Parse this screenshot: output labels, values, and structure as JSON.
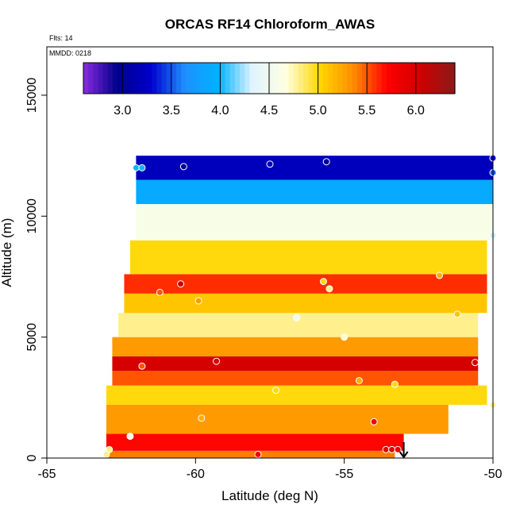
{
  "chart_data": {
    "type": "heatmap",
    "title": "ORCAS RF14 Chloroform_AWAS",
    "subtitle_flights": "Flts: 14",
    "subtitle_date": "MMDD: 0218",
    "xlabel": "Latitude (deg N)",
    "ylabel": "Altitude (m)",
    "xlim": [
      -65,
      -50
    ],
    "ylim": [
      0,
      17000
    ],
    "x_ticks": [
      "-65",
      "-60",
      "-55",
      "-50"
    ],
    "x_tick_values": [
      -65,
      -60,
      -55,
      -50
    ],
    "y_ticks": [
      "0",
      "5000",
      "10000",
      "15000"
    ],
    "y_tick_values": [
      0,
      5000,
      10000,
      15000
    ],
    "colorbar": {
      "range": [
        2.6,
        6.4
      ],
      "ticks": [
        "3.0",
        "3.5",
        "4.0",
        "4.5",
        "5.0",
        "5.5",
        "6.0"
      ],
      "tick_values": [
        3.0,
        3.5,
        4.0,
        4.5,
        5.0,
        5.5,
        6.0
      ],
      "colors": [
        "#8a2be2",
        "#00008b",
        "#0000cd",
        "#1e90ff",
        "#00b2ff",
        "#e0f4ff",
        "#ffffe0",
        "#ffd700",
        "#ff8c00",
        "#ff0000",
        "#cd0000",
        "#8b1a1a"
      ]
    },
    "layers": [
      {
        "alt_bottom": 0,
        "alt_top": 300,
        "lat_start": -63.0,
        "lat_end": -53.3,
        "value": 5.4
      },
      {
        "alt_bottom": 300,
        "alt_top": 1000,
        "lat_start": -63.0,
        "lat_end": -53.0,
        "value": 5.7
      },
      {
        "alt_bottom": 1000,
        "alt_top": 2200,
        "lat_start": -63.0,
        "lat_end": -51.5,
        "value": 5.3
      },
      {
        "alt_bottom": 2200,
        "alt_top": 3000,
        "lat_start": -63.0,
        "lat_end": -50.2,
        "value": 5.0
      },
      {
        "alt_bottom": 3000,
        "alt_top": 3600,
        "lat_start": -62.8,
        "lat_end": -50.5,
        "value": 5.5
      },
      {
        "alt_bottom": 3600,
        "alt_top": 4200,
        "lat_start": -62.8,
        "lat_end": -50.5,
        "value": 6.0
      },
      {
        "alt_bottom": 4200,
        "alt_top": 5000,
        "lat_start": -62.8,
        "lat_end": -50.5,
        "value": 5.3
      },
      {
        "alt_bottom": 5000,
        "alt_top": 6000,
        "lat_start": -62.6,
        "lat_end": -50.5,
        "value": 4.8
      },
      {
        "alt_bottom": 6000,
        "alt_top": 6800,
        "lat_start": -62.4,
        "lat_end": -50.2,
        "value": 5.1
      },
      {
        "alt_bottom": 6800,
        "alt_top": 7600,
        "lat_start": -62.4,
        "lat_end": -50.2,
        "value": 5.6
      },
      {
        "alt_bottom": 7600,
        "alt_top": 9000,
        "lat_start": -62.2,
        "lat_end": -50.2,
        "value": 5.0
      },
      {
        "alt_bottom": 9000,
        "alt_top": 10500,
        "lat_start": -62.0,
        "lat_end": -50.0,
        "value": 4.6
      },
      {
        "alt_bottom": 10500,
        "alt_top": 11500,
        "lat_start": -62.0,
        "lat_end": -50.0,
        "value": 3.9
      },
      {
        "alt_bottom": 11500,
        "alt_top": 12500,
        "lat_start": -62.0,
        "lat_end": -50.0,
        "value": 3.2
      }
    ],
    "points": [
      {
        "lat": -62.0,
        "alt": 12000,
        "value": 4.0
      },
      {
        "lat": -61.8,
        "alt": 12000,
        "value": 4.0
      },
      {
        "lat": -60.4,
        "alt": 12050,
        "value": 3.0
      },
      {
        "lat": -57.5,
        "alt": 12150,
        "value": 3.2
      },
      {
        "lat": -55.6,
        "alt": 12250,
        "value": 3.0
      },
      {
        "lat": -50.0,
        "alt": 12400,
        "value": 3.3
      },
      {
        "lat": -50.0,
        "alt": 11800,
        "value": 3.5
      },
      {
        "lat": -50.0,
        "alt": 9200,
        "value": 4.3
      },
      {
        "lat": -60.5,
        "alt": 7200,
        "value": 6.1
      },
      {
        "lat": -61.2,
        "alt": 6850,
        "value": 5.5
      },
      {
        "lat": -59.9,
        "alt": 6500,
        "value": 5.3
      },
      {
        "lat": -55.7,
        "alt": 7300,
        "value": 5.0
      },
      {
        "lat": -55.5,
        "alt": 7000,
        "value": 4.8
      },
      {
        "lat": -51.8,
        "alt": 7550,
        "value": 5.2
      },
      {
        "lat": -56.6,
        "alt": 5800,
        "value": 4.5
      },
      {
        "lat": -55.0,
        "alt": 5000,
        "value": 4.7
      },
      {
        "lat": -51.2,
        "alt": 5950,
        "value": 5.1
      },
      {
        "lat": -61.8,
        "alt": 3800,
        "value": 5.5
      },
      {
        "lat": -59.3,
        "alt": 4000,
        "value": 6.0
      },
      {
        "lat": -50.6,
        "alt": 3950,
        "value": 6.0
      },
      {
        "lat": -54.5,
        "alt": 3200,
        "value": 5.2
      },
      {
        "lat": -53.3,
        "alt": 3050,
        "value": 5.0
      },
      {
        "lat": -57.3,
        "alt": 2800,
        "value": 5.0
      },
      {
        "lat": -59.8,
        "alt": 1650,
        "value": 5.2
      },
      {
        "lat": -54.0,
        "alt": 1500,
        "value": 5.8
      },
      {
        "lat": -62.2,
        "alt": 900,
        "value": 4.5
      },
      {
        "lat": -62.9,
        "alt": 350,
        "value": 4.8
      },
      {
        "lat": -63.0,
        "alt": 150,
        "value": 4.8
      },
      {
        "lat": -57.9,
        "alt": 150,
        "value": 5.8
      },
      {
        "lat": -53.6,
        "alt": 350,
        "value": 5.9
      },
      {
        "lat": -53.4,
        "alt": 350,
        "value": 5.9
      },
      {
        "lat": -53.2,
        "alt": 350,
        "value": 5.9
      },
      {
        "lat": -50.0,
        "alt": 2200,
        "value": 4.8
      }
    ],
    "marker": {
      "lat": -53.0,
      "alt": 0,
      "symbol": "down-arrow"
    }
  }
}
